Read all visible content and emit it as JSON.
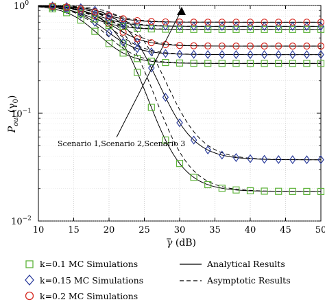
{
  "chart_data": {
    "type": "line",
    "y_scale": "log",
    "xlim": [
      10,
      50
    ],
    "ylim": [
      0.01,
      1
    ],
    "xticks": [
      "10",
      "15",
      "20",
      "25",
      "30",
      "35",
      "40",
      "45",
      "50"
    ],
    "xticks_values": [
      10,
      15,
      20,
      25,
      30,
      35,
      40,
      45,
      50
    ],
    "yticks": [
      {
        "value": 1,
        "base": "10",
        "exp": "0"
      },
      {
        "value": 0.1,
        "base": "10",
        "exp": "−1"
      },
      {
        "value": 0.01,
        "base": "10",
        "exp": "−2"
      }
    ],
    "xlabel": {
      "symbol": "γ",
      "rest": " (dB)"
    },
    "ylabel": {
      "main": "P",
      "sub": "out",
      "arg": "(γ",
      "argsub": "0",
      "close": ")"
    },
    "annotation": "Scenario 1,Scenario 2,Scenario 3",
    "legend": {
      "k01": "k=0.1 MC Simulations",
      "k015": "k=0.15 MC Simulations",
      "k02": "k=0.2 MC Simulations",
      "analytical": "Analytical Results",
      "asymptotic": "Asymptotic Results"
    },
    "colors": {
      "k01": "#5db33a",
      "k015": "#2e3f9e",
      "k02": "#d62a22",
      "line": "#000000"
    },
    "marker_x": [
      12,
      14,
      16,
      18,
      20,
      22,
      24,
      26,
      28,
      30,
      32,
      34,
      36,
      38,
      40,
      42,
      44,
      46,
      48,
      50
    ],
    "series": [
      {
        "k": "k01",
        "scenario": 3,
        "floor": 0.0188,
        "center": 25.5,
        "width": 2.6
      },
      {
        "k": "k015",
        "scenario": 3,
        "floor": 0.037,
        "center": 27.0,
        "width": 2.6
      },
      {
        "k": "k01",
        "scenario": 2,
        "floor": 0.29,
        "center": 18.5,
        "width": 2.3
      },
      {
        "k": "k015",
        "scenario": 2,
        "floor": 0.35,
        "center": 19.5,
        "width": 2.3
      },
      {
        "k": "k02",
        "scenario": 2,
        "floor": 0.42,
        "center": 20.5,
        "width": 2.3
      },
      {
        "k": "k01",
        "scenario": 1,
        "floor": 0.6,
        "center": 17.5,
        "width": 2.2
      },
      {
        "k": "k015",
        "scenario": 1,
        "floor": 0.64,
        "center": 18.5,
        "width": 2.2
      },
      {
        "k": "k02",
        "scenario": 1,
        "floor": 0.7,
        "center": 19.0,
        "width": 2.2
      }
    ]
  }
}
